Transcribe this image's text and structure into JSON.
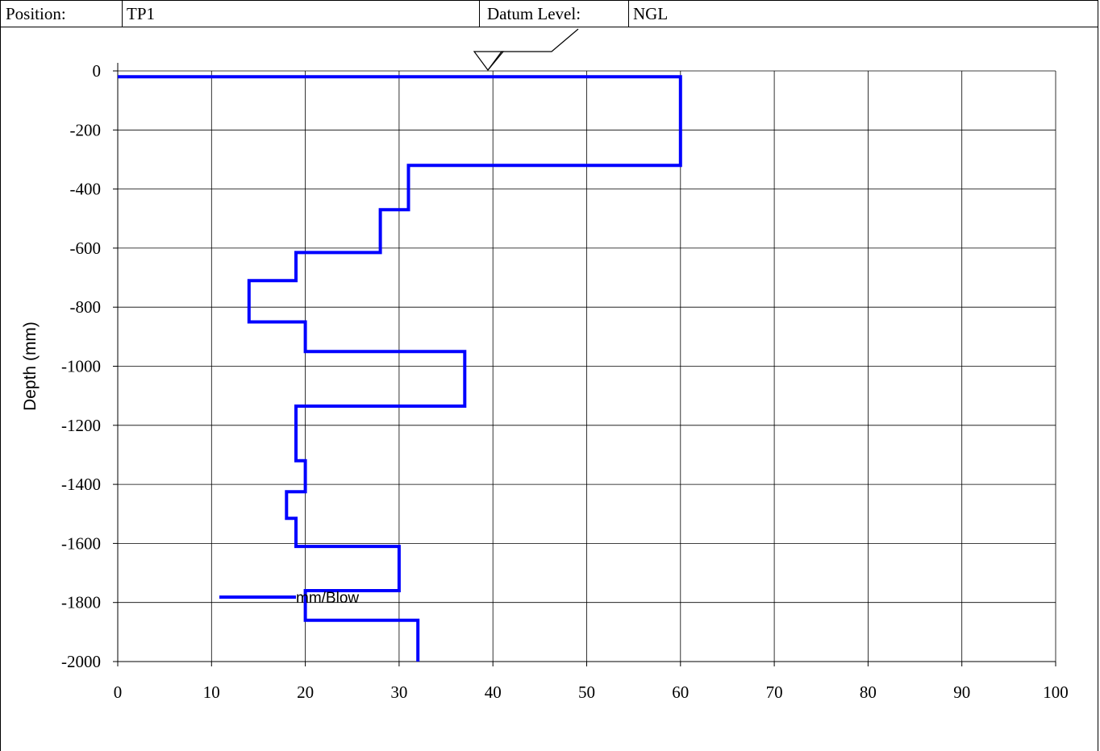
{
  "header": {
    "position_label": "Position:",
    "position_value": "TP1",
    "datum_label": "Datum Level:",
    "datum_value": "NGL"
  },
  "chart_data": {
    "type": "line",
    "title": "",
    "xlabel": "",
    "ylabel": "Depth (mm)",
    "xlim": [
      0,
      100
    ],
    "ylim": [
      -2000,
      0
    ],
    "x_ticks": [
      0,
      10,
      20,
      30,
      40,
      50,
      60,
      70,
      80,
      90,
      100
    ],
    "y_ticks": [
      0,
      -200,
      -400,
      -600,
      -800,
      -1000,
      -1200,
      -1400,
      -1600,
      -1800,
      -2000
    ],
    "grid": true,
    "legend_position": "bottom-left",
    "line_color": "#0000ff",
    "series": [
      {
        "name": "mm/Blow",
        "x": [
          0,
          60,
          60,
          31,
          31,
          28,
          28,
          19,
          19,
          14,
          14,
          20,
          20,
          37,
          37,
          19,
          19,
          20,
          20,
          18,
          18,
          19,
          19,
          30,
          30,
          20,
          20,
          32,
          32
        ],
        "y": [
          -20,
          -20,
          -320,
          -320,
          -470,
          -470,
          -615,
          -615,
          -710,
          -710,
          -850,
          -850,
          -950,
          -950,
          -1135,
          -1135,
          -1320,
          -1320,
          -1425,
          -1425,
          -1515,
          -1515,
          -1610,
          -1610,
          -1760,
          -1760,
          -1860,
          -1860,
          -2000
        ]
      }
    ]
  }
}
